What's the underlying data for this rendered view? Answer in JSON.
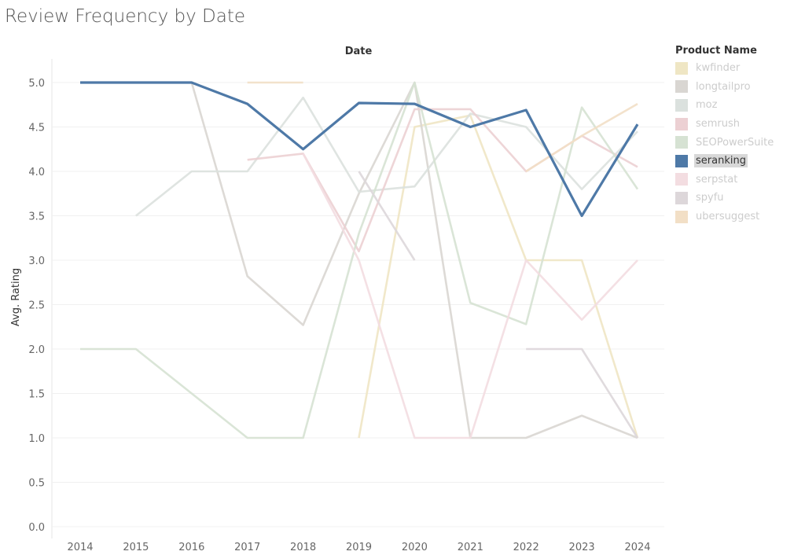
{
  "title": "Review Frequency by Date",
  "chart_data": {
    "type": "line",
    "title": "Review Frequency by Date",
    "column_header": "Date",
    "xlabel": "",
    "ylabel": "Avg. Rating",
    "x": [
      2014,
      2015,
      2016,
      2017,
      2018,
      2019,
      2020,
      2021,
      2022,
      2023,
      2024
    ],
    "ylim": [
      0,
      5
    ],
    "yticks": [
      "0.0",
      "0.5",
      "1.0",
      "1.5",
      "2.0",
      "2.5",
      "3.0",
      "3.5",
      "4.0",
      "4.5",
      "5.0"
    ],
    "grid": true,
    "legend_title": "Product Name",
    "legend_position": "right",
    "highlighted": "seranking",
    "series": [
      {
        "name": "kwfinder",
        "color": "#efe6c4",
        "values": [
          null,
          null,
          null,
          null,
          null,
          1.0,
          4.5,
          4.63,
          3.0,
          3.0,
          1.0
        ]
      },
      {
        "name": "longtailpro",
        "color": "#d9d6d2",
        "values": [
          null,
          null,
          5.0,
          2.82,
          2.27,
          3.75,
          5.0,
          1.0,
          1.0,
          1.25,
          1.0
        ]
      },
      {
        "name": "moz",
        "color": "#dbe1de",
        "values": [
          null,
          3.5,
          4.0,
          4.0,
          4.83,
          3.77,
          3.83,
          4.65,
          4.5,
          3.8,
          4.45
        ]
      },
      {
        "name": "semrush",
        "color": "#ecd0d3",
        "values": [
          null,
          null,
          null,
          4.13,
          4.2,
          3.1,
          4.7,
          4.7,
          4.0,
          4.4,
          4.05
        ]
      },
      {
        "name": "SEOPowerSuite",
        "color": "#d6e2d3",
        "values": [
          2.0,
          2.0,
          1.5,
          1.0,
          1.0,
          3.3,
          5.0,
          2.52,
          2.28,
          4.72,
          3.8
        ]
      },
      {
        "name": "seranking",
        "color": "#4e79a7",
        "values": [
          5.0,
          5.0,
          5.0,
          4.76,
          4.25,
          4.77,
          4.76,
          4.5,
          4.69,
          3.5,
          4.53
        ]
      },
      {
        "name": "serpstat",
        "color": "#f3dde1",
        "values": [
          null,
          null,
          null,
          null,
          4.2,
          3.0,
          1.0,
          1.0,
          3.0,
          2.33,
          3.0
        ]
      },
      {
        "name": "spyfu",
        "color": "#ddd7da",
        "values": [
          null,
          null,
          null,
          null,
          null,
          4.0,
          3.0,
          null,
          2.0,
          2.0,
          1.0
        ]
      },
      {
        "name": "ubersuggest",
        "color": "#f2dfc6",
        "values": [
          null,
          null,
          null,
          5.0,
          5.0,
          null,
          null,
          null,
          4.0,
          4.4,
          4.76
        ]
      }
    ]
  }
}
